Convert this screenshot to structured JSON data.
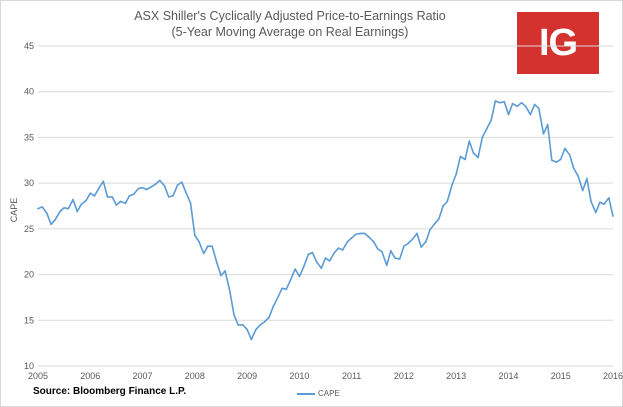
{
  "chart_data": {
    "type": "line",
    "title": "ASX Shiller's Cyclically Adjusted Price-to-Earnings Ratio",
    "subtitle": "(5-Year Moving Average on Real Earnings)",
    "ylabel": "CAPE",
    "xlabel": "",
    "ylim": [
      10,
      45
    ],
    "xlim": [
      2005,
      2016
    ],
    "yticks": [
      "10",
      "15",
      "20",
      "25",
      "30",
      "35",
      "40",
      "45"
    ],
    "xticks": [
      "2005",
      "2006",
      "2007",
      "2008",
      "2009",
      "2010",
      "2011",
      "2012",
      "2013",
      "2014",
      "2015",
      "2016"
    ],
    "grid": true,
    "legend_position": "bottom",
    "series": [
      {
        "name": "CAPE",
        "color": "#5b9bd5",
        "x": [
          2005.0,
          2005.08,
          2005.17,
          2005.25,
          2005.33,
          2005.42,
          2005.5,
          2005.58,
          2005.67,
          2005.75,
          2005.83,
          2005.92,
          2006.0,
          2006.08,
          2006.17,
          2006.25,
          2006.33,
          2006.42,
          2006.5,
          2006.58,
          2006.67,
          2006.75,
          2006.83,
          2006.92,
          2007.0,
          2007.08,
          2007.17,
          2007.25,
          2007.33,
          2007.42,
          2007.5,
          2007.58,
          2007.67,
          2007.75,
          2007.83,
          2007.92,
          2008.0,
          2008.08,
          2008.17,
          2008.25,
          2008.33,
          2008.42,
          2008.5,
          2008.58,
          2008.67,
          2008.75,
          2008.83,
          2008.92,
          2009.0,
          2009.08,
          2009.17,
          2009.25,
          2009.33,
          2009.42,
          2009.5,
          2009.58,
          2009.67,
          2009.75,
          2009.83,
          2009.92,
          2010.0,
          2010.08,
          2010.17,
          2010.25,
          2010.33,
          2010.42,
          2010.5,
          2010.58,
          2010.67,
          2010.75,
          2010.83,
          2010.92,
          2011.0,
          2011.08,
          2011.17,
          2011.25,
          2011.33,
          2011.42,
          2011.5,
          2011.58,
          2011.67,
          2011.75,
          2011.83,
          2011.92,
          2012.0,
          2012.08,
          2012.17,
          2012.25,
          2012.33,
          2012.42,
          2012.5,
          2012.58,
          2012.67,
          2012.75,
          2012.83,
          2012.92,
          2013.0,
          2013.08,
          2013.17,
          2013.25,
          2013.33,
          2013.42,
          2013.5,
          2013.58,
          2013.67,
          2013.75,
          2013.83,
          2013.92,
          2014.0,
          2014.08,
          2014.17,
          2014.25,
          2014.33,
          2014.42,
          2014.5,
          2014.58,
          2014.67,
          2014.75,
          2014.83,
          2014.92,
          2015.0,
          2015.08,
          2015.17,
          2015.25,
          2015.33,
          2015.42,
          2015.5,
          2015.58,
          2015.67,
          2015.75,
          2015.83,
          2015.92,
          2016.0
        ],
        "values": [
          27.2,
          27.4,
          26.7,
          25.5,
          26.0,
          26.9,
          27.3,
          27.2,
          28.2,
          26.9,
          27.7,
          28.1,
          28.9,
          28.6,
          29.5,
          30.2,
          28.5,
          28.5,
          27.6,
          28.0,
          27.8,
          28.6,
          28.8,
          29.4,
          29.5,
          29.3,
          29.6,
          29.9,
          30.3,
          29.7,
          28.5,
          28.6,
          29.8,
          30.1,
          29.0,
          27.8,
          24.3,
          23.6,
          22.3,
          23.1,
          23.1,
          21.3,
          19.9,
          20.4,
          18.2,
          15.6,
          14.5,
          14.5,
          14.0,
          12.9,
          14.0,
          14.5,
          14.8,
          15.3,
          16.5,
          17.4,
          18.5,
          18.4,
          19.4,
          20.6,
          19.8,
          20.8,
          22.2,
          22.4,
          21.4,
          20.7,
          21.8,
          21.5,
          22.4,
          22.9,
          22.7,
          23.6,
          24.0,
          24.4,
          24.5,
          24.5,
          24.1,
          23.6,
          22.8,
          22.5,
          21.0,
          22.6,
          21.8,
          21.7,
          23.1,
          23.4,
          23.9,
          24.5,
          23.0,
          23.6,
          24.9,
          25.5,
          26.1,
          27.5,
          28.0,
          29.8,
          31.0,
          32.9,
          32.6,
          34.6,
          33.3,
          32.8,
          35.0,
          35.9,
          36.9,
          39.0,
          38.8,
          38.9,
          37.5,
          38.7,
          38.4,
          38.8,
          38.4,
          37.5,
          38.6,
          38.2,
          35.4,
          36.4,
          32.5,
          32.3,
          32.6,
          33.8,
          33.1,
          31.6,
          30.8,
          29.2,
          30.5,
          28.0,
          26.8,
          27.9,
          27.7,
          28.4,
          26.4
        ]
      }
    ]
  },
  "source": "Source: Bloomberg Finance L.P.",
  "logo_text": "IG"
}
